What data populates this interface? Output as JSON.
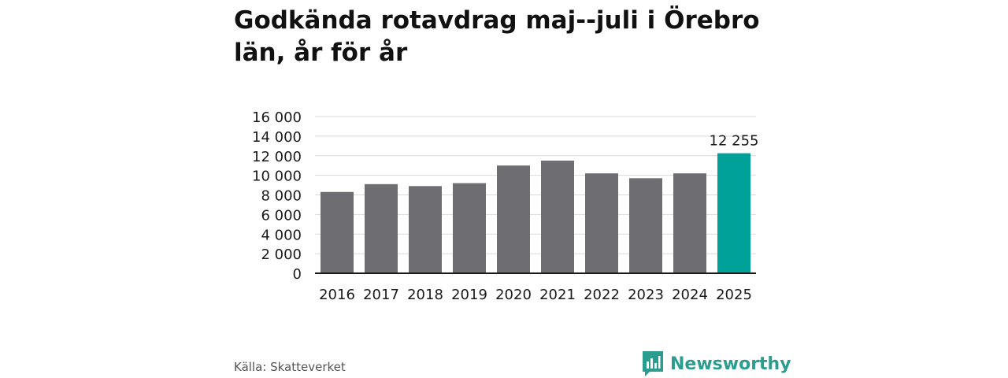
{
  "header": {
    "title": "Godkända rotavdrag maj--juli i Örebro län, år för år"
  },
  "footer": {
    "source": "Källa: Skatteverket",
    "brand": "Newsworthy"
  },
  "colors": {
    "bar": "#6e6d72",
    "highlight": "#00a199",
    "grid": "#d9d9d9",
    "axis": "#1a1a1a",
    "brand": "#2a9d8f"
  },
  "icons": {
    "logo": "bar-chart-speech-bubble-icon"
  },
  "chart_data": {
    "type": "bar",
    "categories": [
      "2016",
      "2017",
      "2018",
      "2019",
      "2020",
      "2021",
      "2022",
      "2023",
      "2024",
      "2025"
    ],
    "values": [
      8300,
      9100,
      8900,
      9200,
      11000,
      11500,
      10200,
      9700,
      10200,
      12255
    ],
    "highlight_index": 9,
    "data_labels": [
      {
        "category": "2025",
        "text": "12 255"
      }
    ],
    "yticks": [
      0,
      2000,
      4000,
      6000,
      8000,
      10000,
      12000,
      14000,
      16000
    ],
    "ytick_labels": [
      "0",
      "2 000",
      "4 000",
      "6 000",
      "8 000",
      "10 000",
      "12 000",
      "14 000",
      "16 000"
    ],
    "ylim": [
      0,
      16000
    ],
    "grid": true,
    "legend": "none"
  }
}
